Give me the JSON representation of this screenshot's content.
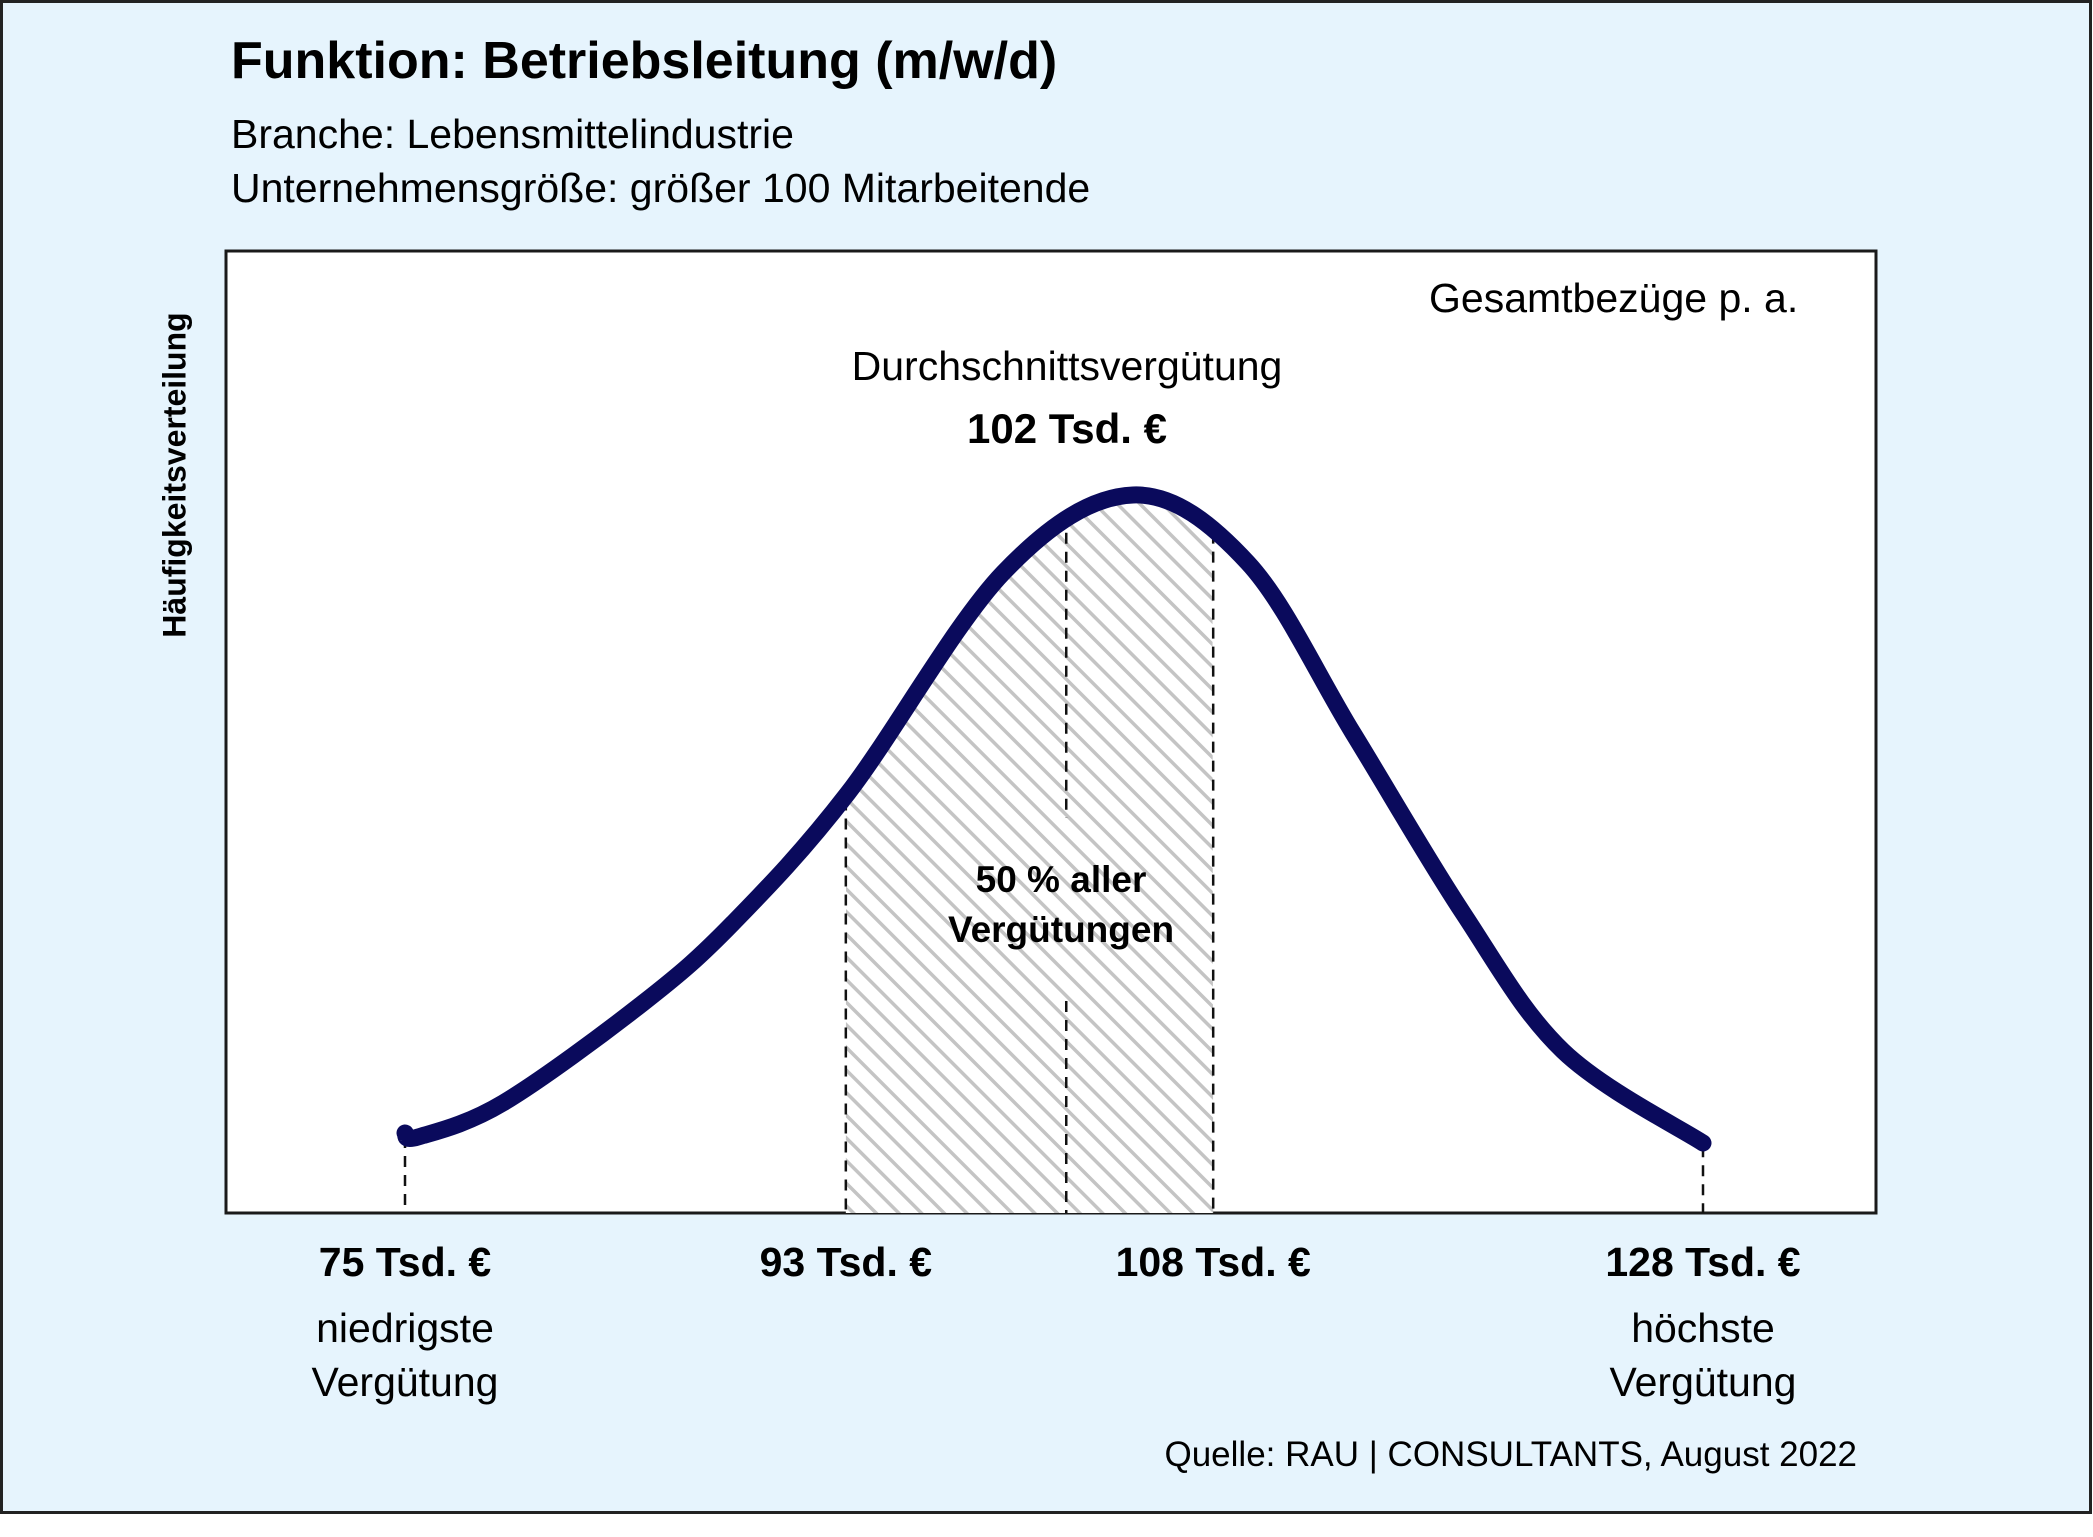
{
  "header": {
    "title": "Funktion: Betriebsleitung (m/w/d)",
    "line1": "Branche: Lebensmittelindustrie",
    "line2": "Unternehmensgröße: größer 100 Mitarbeitende"
  },
  "chart_data": {
    "type": "area",
    "ylabel": "Häufigkeitsverteilung",
    "panel_label": "Gesamtbezüge p. a.",
    "average_label": "Durchschnittsvergütung",
    "average_value_label": "102 Tsd. €",
    "average_value": 102,
    "shaded_range": [
      93,
      108
    ],
    "shaded_label": [
      "50 % aller",
      "Vergütungen"
    ],
    "min_value": 75,
    "max_value": 128,
    "markers": [
      {
        "value": 75,
        "label": "75 Tsd. €",
        "desc": [
          "niedrigste",
          "Vergütung"
        ]
      },
      {
        "value": 93,
        "label": "93 Tsd. €",
        "desc": []
      },
      {
        "value": 108,
        "label": "108 Tsd. €",
        "desc": []
      },
      {
        "value": 128,
        "label": "128 Tsd. €",
        "desc": [
          "höchste",
          "Vergütung"
        ]
      }
    ],
    "curve_color": "#0a0a5c",
    "hatch_color": "#c8c8c8"
  },
  "footer": {
    "source": "Quelle: RAU | CONSULTANTS, August 2022"
  }
}
